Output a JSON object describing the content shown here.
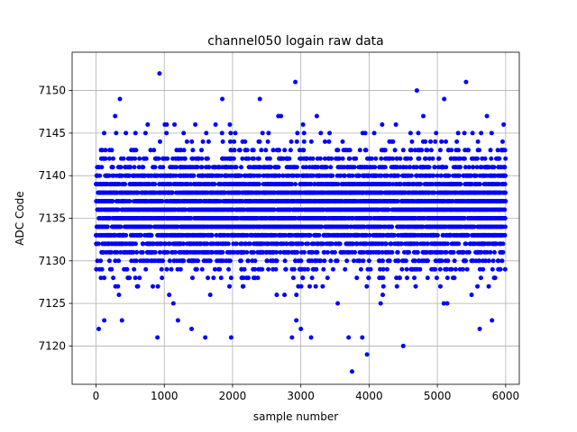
{
  "chart_data": {
    "type": "scatter",
    "title": "channel050 logain raw data",
    "xlabel": "sample number",
    "ylabel": "ADC Code",
    "xlim": [
      -350,
      6200
    ],
    "ylim": [
      7115.5,
      7154.5
    ],
    "x_ticks": [
      0,
      1000,
      2000,
      3000,
      4000,
      5000,
      6000
    ],
    "y_ticks": [
      7120,
      7125,
      7130,
      7135,
      7140,
      7145,
      7150
    ],
    "grid": true,
    "marker_color": "#0000ff",
    "n_samples": 6000,
    "series": [
      {
        "name": "",
        "x_start": 0,
        "x_step": 1,
        "mean": 7136,
        "std": 3.4,
        "outliers": [
          {
            "x": 40,
            "y": 7122
          },
          {
            "x": 120,
            "y": 7123
          },
          {
            "x": 350,
            "y": 7149
          },
          {
            "x": 380,
            "y": 7123
          },
          {
            "x": 900,
            "y": 7121
          },
          {
            "x": 930,
            "y": 7152
          },
          {
            "x": 1200,
            "y": 7123
          },
          {
            "x": 1400,
            "y": 7122
          },
          {
            "x": 1600,
            "y": 7121
          },
          {
            "x": 1850,
            "y": 7149
          },
          {
            "x": 1980,
            "y": 7121
          },
          {
            "x": 2400,
            "y": 7149
          },
          {
            "x": 2870,
            "y": 7121
          },
          {
            "x": 2920,
            "y": 7151
          },
          {
            "x": 3150,
            "y": 7121
          },
          {
            "x": 3700,
            "y": 7121
          },
          {
            "x": 3750,
            "y": 7117
          },
          {
            "x": 3900,
            "y": 7121
          },
          {
            "x": 3970,
            "y": 7119
          },
          {
            "x": 4500,
            "y": 7120
          },
          {
            "x": 4700,
            "y": 7150
          },
          {
            "x": 5100,
            "y": 7149
          },
          {
            "x": 5420,
            "y": 7151
          },
          {
            "x": 5620,
            "y": 7122
          },
          {
            "x": 5800,
            "y": 7123
          }
        ]
      }
    ]
  }
}
